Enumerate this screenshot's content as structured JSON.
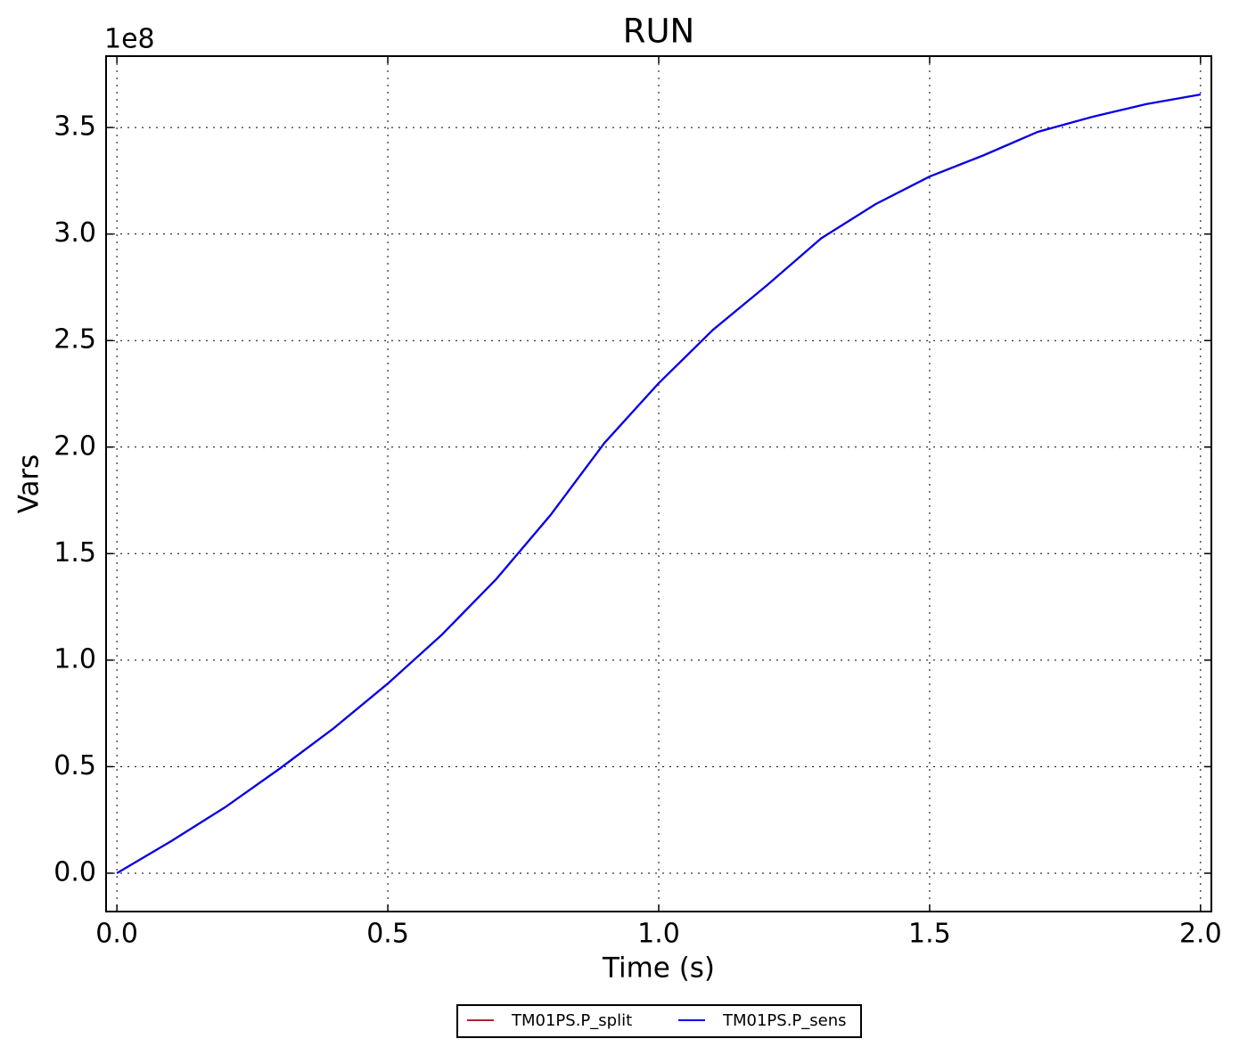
{
  "chart_data": {
    "type": "line",
    "title": "RUN",
    "x_label": "Time (s)",
    "y_label": "Vars",
    "y_offset_label": "1e8",
    "x": [
      0,
      0.1,
      0.2,
      0.3,
      0.4,
      0.5,
      0.6,
      0.7,
      0.8,
      0.9,
      1.0,
      1.1,
      1.2,
      1.3,
      1.4,
      1.5,
      1.6,
      1.7,
      1.8,
      1.9,
      2.0
    ],
    "series": [
      {
        "name": "TM01PS.P_split",
        "color": "#a52a2a",
        "values": [
          0,
          0.15,
          0.31,
          0.49,
          0.68,
          0.89,
          1.12,
          1.38,
          1.68,
          2.02,
          2.3,
          2.55,
          2.76,
          2.98,
          3.14,
          3.27,
          3.37,
          3.48,
          3.55,
          3.61,
          3.655
        ]
      },
      {
        "name": "TM01PS.P_sens",
        "color": "#0000ee",
        "values": [
          0,
          0.15,
          0.31,
          0.49,
          0.68,
          0.89,
          1.12,
          1.38,
          1.68,
          2.02,
          2.3,
          2.55,
          2.76,
          2.98,
          3.14,
          3.27,
          3.37,
          3.48,
          3.55,
          3.61,
          3.655
        ]
      }
    ],
    "xlim": [
      -0.02,
      2.02
    ],
    "xticks": [
      {
        "value": 0,
        "label": "0.0"
      },
      0.5,
      {
        "value": 1,
        "label": "1.0"
      },
      1.5,
      {
        "value": 2,
        "label": "2.0"
      }
    ],
    "ylim": [
      -0.18,
      3.835
    ],
    "yticks": [
      {
        "value": 0,
        "label": "0.0"
      },
      0.5,
      {
        "value": 1,
        "label": "1.0"
      },
      1.5,
      {
        "value": 2,
        "label": "2.0"
      },
      2.5,
      {
        "value": 3,
        "label": "3.0"
      },
      3.5
    ],
    "grid": true,
    "legend": "below"
  }
}
